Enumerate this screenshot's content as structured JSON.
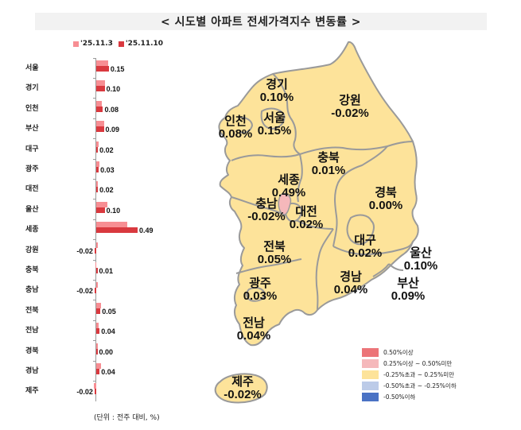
{
  "title": "< 시도별 아파트 전세가격지수 변동률 >",
  "legend": {
    "series": [
      {
        "label": "'25.11.3",
        "color": "#f78e93"
      },
      {
        "label": "'25.11.10",
        "color": "#d9393f"
      }
    ]
  },
  "unit_note": "(단위 : 전주 대비, %)",
  "chart_data": [
    {
      "type": "bar",
      "orientation": "horizontal",
      "title": "시도별 아파트 전세가격지수 변동률",
      "xlabel": "",
      "ylabel": "",
      "unit": "전주 대비, %",
      "categories": [
        "서울",
        "경기",
        "인천",
        "부산",
        "대구",
        "광주",
        "대전",
        "울산",
        "세종",
        "강원",
        "충북",
        "충남",
        "전북",
        "전남",
        "경북",
        "경남",
        "제주"
      ],
      "series": [
        {
          "name": "'25.11.3",
          "values": [
            0.14,
            0.1,
            0.07,
            0.09,
            0.03,
            0.04,
            0.02,
            0.13,
            0.37,
            0.0,
            -0.01,
            0.0,
            0.06,
            0.03,
            0.01,
            0.06,
            -0.03
          ]
        },
        {
          "name": "'25.11.10",
          "values": [
            0.15,
            0.1,
            0.08,
            0.09,
            0.02,
            0.03,
            0.02,
            0.1,
            0.49,
            -0.02,
            0.01,
            -0.02,
            0.05,
            0.04,
            0.0,
            0.04,
            -0.02
          ]
        }
      ],
      "data_labels": [
        "0.15",
        "0.10",
        "0.08",
        "0.09",
        "0.02",
        "0.03",
        "0.02",
        "0.10",
        "0.49",
        "-0.02",
        "0.01",
        "-0.02",
        "0.05",
        "0.04",
        "0.00",
        "0.04",
        "-0.02"
      ],
      "legend_position": "top",
      "grid": false
    },
    {
      "type": "heatmap",
      "subtype": "choropleth-map",
      "title": "시도별 아파트 전세가격지수 변동률 지도",
      "regions": [
        {
          "name": "경기",
          "value": "0.10%"
        },
        {
          "name": "강원",
          "value": "-0.02%"
        },
        {
          "name": "인천",
          "value": "0.08%"
        },
        {
          "name": "서울",
          "value": "0.15%"
        },
        {
          "name": "충북",
          "value": "0.01%"
        },
        {
          "name": "세종",
          "value": "0.49%"
        },
        {
          "name": "충남",
          "value": "-0.02%"
        },
        {
          "name": "대전",
          "value": "0.02%"
        },
        {
          "name": "경북",
          "value": "0.00%"
        },
        {
          "name": "전북",
          "value": "0.05%"
        },
        {
          "name": "대구",
          "value": "0.02%"
        },
        {
          "name": "울산",
          "value": "0.10%"
        },
        {
          "name": "광주",
          "value": "0.03%"
        },
        {
          "name": "경남",
          "value": "0.04%"
        },
        {
          "name": "부산",
          "value": "0.09%"
        },
        {
          "name": "전남",
          "value": "0.04%"
        },
        {
          "name": "제주",
          "value": "-0.02%"
        }
      ],
      "legend": [
        {
          "label": "0.50%이상",
          "color": "#ec7478"
        },
        {
          "label": "0.25%이상 ~ 0.50%미만",
          "color": "#f5b8bb"
        },
        {
          "label": "-0.25%초과 ~ 0.25%미만",
          "color": "#fde39a"
        },
        {
          "label": "-0.50%초과 ~ -0.25%이하",
          "color": "#bccbe8"
        },
        {
          "label": "-0.50%이하",
          "color": "#4a72c4"
        }
      ]
    }
  ],
  "colors": {
    "map_fill": "#fde39a",
    "map_highlight": "#f5b8bb",
    "map_border": "#9a9a9a",
    "title_bg": "#f2f2f2"
  }
}
